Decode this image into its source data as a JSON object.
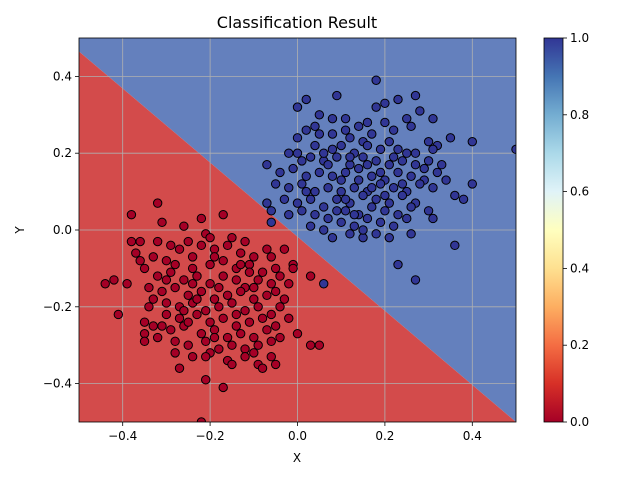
{
  "chart_data": {
    "type": "scatter",
    "title": "Classification Result",
    "xlabel": "X",
    "ylabel": "Y",
    "xlim": [
      -0.5,
      0.5
    ],
    "ylim": [
      -0.5,
      0.5
    ],
    "xticks": [
      -0.4,
      -0.2,
      0.0,
      0.2,
      0.4
    ],
    "xtick_labels": [
      "−0.4",
      "−0.2",
      "0.0",
      "0.2",
      "0.4"
    ],
    "yticks": [
      -0.4,
      -0.2,
      0.0,
      0.2,
      0.4
    ],
    "ytick_labels": [
      "−0.4",
      "−0.2",
      "0.0",
      "0.2",
      "0.4"
    ],
    "grid": true,
    "decision_boundary": {
      "points": [
        [
          -0.5,
          0.465
        ],
        [
          0.5,
          -0.5
        ]
      ]
    },
    "regions": [
      {
        "class": 0,
        "side": "below-boundary",
        "color": "#d34b4b"
      },
      {
        "class": 1,
        "side": "above-boundary",
        "color": "#6480bd"
      }
    ],
    "colorbar": {
      "colormap": "RdYlBu",
      "range": [
        0,
        1
      ],
      "ticks": [
        0.0,
        0.2,
        0.4,
        0.6,
        0.8,
        1.0
      ],
      "tick_labels": [
        "0.0",
        "0.2",
        "0.4",
        "0.6",
        "0.8",
        "1.0"
      ],
      "stops": [
        "#a50026",
        "#d73027",
        "#f46d43",
        "#fdae61",
        "#fee090",
        "#ffffbf",
        "#e0f3f8",
        "#abd9e9",
        "#74add1",
        "#4575b4",
        "#313695"
      ]
    },
    "series": [
      {
        "class": 0,
        "color": "#a50026",
        "points": [
          [
            -0.32,
            0.07
          ],
          [
            -0.38,
            0.04
          ],
          [
            -0.31,
            0.02
          ],
          [
            -0.26,
            0.01
          ],
          [
            -0.21,
            -0.01
          ],
          [
            -0.22,
            0.03
          ],
          [
            -0.17,
            0.04
          ],
          [
            -0.38,
            -0.03
          ],
          [
            -0.36,
            -0.03
          ],
          [
            -0.32,
            -0.03
          ],
          [
            -0.27,
            -0.05
          ],
          [
            -0.25,
            -0.03
          ],
          [
            -0.22,
            -0.04
          ],
          [
            -0.19,
            -0.05
          ],
          [
            -0.16,
            -0.04
          ],
          [
            -0.13,
            -0.06
          ],
          [
            -0.1,
            -0.07
          ],
          [
            -0.06,
            -0.07
          ],
          [
            -0.03,
            -0.05
          ],
          [
            -0.33,
            -0.07
          ],
          [
            -0.3,
            -0.08
          ],
          [
            -0.28,
            -0.09
          ],
          [
            -0.24,
            -0.1
          ],
          [
            -0.2,
            -0.09
          ],
          [
            -0.17,
            -0.08
          ],
          [
            -0.14,
            -0.1
          ],
          [
            -0.11,
            -0.09
          ],
          [
            -0.08,
            -0.11
          ],
          [
            -0.05,
            -0.1
          ],
          [
            -0.01,
            -0.09
          ],
          [
            -0.35,
            -0.1
          ],
          [
            -0.32,
            -0.12
          ],
          [
            -0.29,
            -0.11
          ],
          [
            -0.26,
            -0.13
          ],
          [
            -0.23,
            -0.12
          ],
          [
            -0.2,
            -0.14
          ],
          [
            -0.17,
            -0.12
          ],
          [
            -0.14,
            -0.13
          ],
          [
            -0.12,
            -0.15
          ],
          [
            -0.09,
            -0.13
          ],
          [
            -0.06,
            -0.14
          ],
          [
            -0.04,
            -0.12
          ],
          [
            -0.42,
            -0.13
          ],
          [
            -0.44,
            -0.14
          ],
          [
            -0.39,
            -0.14
          ],
          [
            -0.34,
            -0.15
          ],
          [
            -0.31,
            -0.16
          ],
          [
            -0.28,
            -0.15
          ],
          [
            -0.25,
            -0.17
          ],
          [
            -0.22,
            -0.16
          ],
          [
            -0.19,
            -0.18
          ],
          [
            -0.16,
            -0.17
          ],
          [
            -0.13,
            -0.16
          ],
          [
            -0.1,
            -0.18
          ],
          [
            -0.07,
            -0.17
          ],
          [
            -0.05,
            -0.16
          ],
          [
            -0.33,
            -0.18
          ],
          [
            -0.3,
            -0.19
          ],
          [
            -0.27,
            -0.2
          ],
          [
            -0.24,
            -0.19
          ],
          [
            -0.21,
            -0.21
          ],
          [
            -0.18,
            -0.2
          ],
          [
            -0.15,
            -0.19
          ],
          [
            -0.12,
            -0.21
          ],
          [
            -0.09,
            -0.2
          ],
          [
            -0.06,
            -0.22
          ],
          [
            -0.41,
            -0.22
          ],
          [
            -0.3,
            -0.22
          ],
          [
            -0.27,
            -0.23
          ],
          [
            -0.23,
            -0.22
          ],
          [
            -0.2,
            -0.24
          ],
          [
            -0.17,
            -0.23
          ],
          [
            -0.14,
            -0.25
          ],
          [
            -0.11,
            -0.24
          ],
          [
            -0.08,
            -0.23
          ],
          [
            -0.05,
            -0.25
          ],
          [
            -0.02,
            -0.23
          ],
          [
            -0.35,
            -0.24
          ],
          [
            -0.33,
            -0.25
          ],
          [
            -0.29,
            -0.26
          ],
          [
            -0.26,
            -0.25
          ],
          [
            -0.22,
            -0.27
          ],
          [
            -0.19,
            -0.26
          ],
          [
            -0.16,
            -0.28
          ],
          [
            -0.13,
            -0.27
          ],
          [
            -0.1,
            -0.28
          ],
          [
            -0.07,
            -0.26
          ],
          [
            -0.04,
            -0.28
          ],
          [
            -0.35,
            -0.27
          ],
          [
            -0.32,
            -0.28
          ],
          [
            -0.28,
            -0.29
          ],
          [
            -0.25,
            -0.3
          ],
          [
            -0.21,
            -0.29
          ],
          [
            -0.18,
            -0.31
          ],
          [
            -0.15,
            -0.3
          ],
          [
            -0.12,
            -0.31
          ],
          [
            -0.09,
            -0.3
          ],
          [
            -0.06,
            -0.29
          ],
          [
            -0.35,
            -0.29
          ],
          [
            -0.28,
            -0.32
          ],
          [
            -0.24,
            -0.33
          ],
          [
            -0.2,
            -0.32
          ],
          [
            -0.16,
            -0.34
          ],
          [
            -0.12,
            -0.33
          ],
          [
            -0.09,
            -0.35
          ],
          [
            -0.05,
            -0.35
          ],
          [
            -0.27,
            -0.36
          ],
          [
            -0.21,
            -0.39
          ],
          [
            -0.17,
            -0.41
          ],
          [
            -0.22,
            -0.5
          ],
          [
            0.0,
            -0.27
          ],
          [
            0.03,
            -0.3
          ],
          [
            0.05,
            -0.3
          ],
          [
            0.03,
            -0.12
          ],
          [
            -0.01,
            -0.1
          ],
          [
            -0.08,
            -0.36
          ],
          [
            -0.37,
            -0.06
          ],
          [
            -0.34,
            -0.2
          ],
          [
            -0.36,
            -0.08
          ],
          [
            -0.24,
            -0.07
          ],
          [
            -0.12,
            -0.03
          ],
          [
            -0.15,
            -0.02
          ],
          [
            -0.19,
            -0.07
          ],
          [
            -0.29,
            -0.04
          ],
          [
            -0.03,
            -0.18
          ],
          [
            -0.02,
            -0.14
          ],
          [
            -0.1,
            -0.15
          ],
          [
            -0.2,
            -0.02
          ],
          [
            -0.26,
            -0.21
          ],
          [
            -0.31,
            -0.25
          ],
          [
            -0.14,
            -0.22
          ],
          [
            -0.18,
            -0.15
          ],
          [
            -0.23,
            -0.18
          ],
          [
            -0.15,
            -0.35
          ],
          [
            -0.1,
            -0.32
          ],
          [
            -0.06,
            -0.33
          ],
          [
            -0.25,
            -0.24
          ],
          [
            -0.19,
            -0.28
          ],
          [
            -0.3,
            -0.13
          ],
          [
            -0.07,
            -0.05
          ],
          [
            -0.11,
            -0.11
          ],
          [
            -0.24,
            -0.14
          ],
          [
            -0.04,
            -0.2
          ],
          [
            -0.21,
            -0.33
          ],
          [
            -0.13,
            -0.09
          ]
        ]
      },
      {
        "class": 1,
        "color": "#313695",
        "points": [
          [
            0.18,
            0.39
          ],
          [
            0.09,
            0.35
          ],
          [
            0.02,
            0.34
          ],
          [
            0.23,
            0.34
          ],
          [
            0.27,
            0.35
          ],
          [
            0.05,
            0.3
          ],
          [
            0.0,
            0.32
          ],
          [
            0.2,
            0.33
          ],
          [
            0.18,
            0.32
          ],
          [
            0.11,
            0.29
          ],
          [
            0.14,
            0.27
          ],
          [
            0.2,
            0.28
          ],
          [
            0.25,
            0.29
          ],
          [
            0.31,
            0.29
          ],
          [
            0.02,
            0.26
          ],
          [
            0.05,
            0.25
          ],
          [
            0.08,
            0.25
          ],
          [
            0.11,
            0.26
          ],
          [
            0.15,
            0.23
          ],
          [
            0.17,
            0.25
          ],
          [
            0.22,
            0.26
          ],
          [
            0.26,
            0.27
          ],
          [
            0.3,
            0.23
          ],
          [
            0.32,
            0.22
          ],
          [
            0.35,
            0.24
          ],
          [
            0.4,
            0.23
          ],
          [
            0.0,
            0.24
          ],
          [
            0.04,
            0.22
          ],
          [
            0.08,
            0.21
          ],
          [
            0.1,
            0.22
          ],
          [
            0.13,
            0.2
          ],
          [
            0.16,
            0.22
          ],
          [
            0.19,
            0.21
          ],
          [
            0.23,
            0.21
          ],
          [
            0.27,
            0.2
          ],
          [
            0.31,
            0.21
          ],
          [
            0.5,
            0.21
          ],
          [
            0.0,
            0.2
          ],
          [
            0.03,
            0.19
          ],
          [
            0.06,
            0.18
          ],
          [
            0.09,
            0.19
          ],
          [
            0.12,
            0.17
          ],
          [
            0.15,
            0.19
          ],
          [
            0.18,
            0.18
          ],
          [
            0.21,
            0.17
          ],
          [
            0.24,
            0.18
          ],
          [
            0.27,
            0.17
          ],
          [
            0.3,
            0.18
          ],
          [
            0.33,
            0.17
          ],
          [
            -0.07,
            0.17
          ],
          [
            -0.04,
            0.15
          ],
          [
            -0.01,
            0.16
          ],
          [
            0.02,
            0.14
          ],
          [
            0.05,
            0.15
          ],
          [
            0.08,
            0.14
          ],
          [
            0.11,
            0.15
          ],
          [
            0.14,
            0.13
          ],
          [
            0.17,
            0.14
          ],
          [
            0.2,
            0.13
          ],
          [
            0.23,
            0.15
          ],
          [
            0.26,
            0.14
          ],
          [
            0.29,
            0.13
          ],
          [
            0.32,
            0.15
          ],
          [
            -0.05,
            0.12
          ],
          [
            -0.02,
            0.11
          ],
          [
            0.01,
            0.12
          ],
          [
            0.04,
            0.1
          ],
          [
            0.07,
            0.11
          ],
          [
            0.1,
            0.1
          ],
          [
            0.13,
            0.11
          ],
          [
            0.16,
            0.1
          ],
          [
            0.19,
            0.12
          ],
          [
            0.22,
            0.11
          ],
          [
            0.25,
            0.1
          ],
          [
            0.28,
            0.12
          ],
          [
            0.31,
            0.11
          ],
          [
            0.4,
            0.12
          ],
          [
            -0.03,
            0.08
          ],
          [
            0.0,
            0.07
          ],
          [
            0.03,
            0.08
          ],
          [
            0.06,
            0.06
          ],
          [
            0.09,
            0.08
          ],
          [
            0.12,
            0.07
          ],
          [
            0.15,
            0.09
          ],
          [
            0.18,
            0.08
          ],
          [
            0.21,
            0.07
          ],
          [
            0.24,
            0.09
          ],
          [
            0.27,
            0.07
          ],
          [
            0.36,
            0.09
          ],
          [
            -0.06,
            0.05
          ],
          [
            -0.02,
            0.04
          ],
          [
            0.01,
            0.05
          ],
          [
            0.04,
            0.04
          ],
          [
            0.07,
            0.03
          ],
          [
            0.11,
            0.05
          ],
          [
            0.14,
            0.04
          ],
          [
            0.17,
            0.06
          ],
          [
            0.2,
            0.05
          ],
          [
            0.23,
            0.04
          ],
          [
            0.26,
            0.06
          ],
          [
            0.3,
            0.05
          ],
          [
            -0.07,
            0.07
          ],
          [
            -0.06,
            0.02
          ],
          [
            0.03,
            0.01
          ],
          [
            0.06,
            0.0
          ],
          [
            0.1,
            0.02
          ],
          [
            0.13,
            0.01
          ],
          [
            0.16,
            0.03
          ],
          [
            0.19,
            0.02
          ],
          [
            0.22,
            0.01
          ],
          [
            0.25,
            0.03
          ],
          [
            0.31,
            0.03
          ],
          [
            0.08,
            -0.02
          ],
          [
            0.12,
            -0.01
          ],
          [
            0.15,
            -0.02
          ],
          [
            0.18,
            -0.01
          ],
          [
            0.21,
            -0.02
          ],
          [
            0.26,
            -0.01
          ],
          [
            0.36,
            -0.04
          ],
          [
            0.23,
            -0.09
          ],
          [
            0.27,
            -0.13
          ],
          [
            0.06,
            -0.14
          ],
          [
            0.38,
            0.08
          ],
          [
            0.34,
            0.13
          ],
          [
            0.28,
            0.31
          ],
          [
            0.12,
            0.24
          ],
          [
            0.16,
            0.28
          ],
          [
            0.08,
            0.29
          ],
          [
            0.21,
            0.23
          ],
          [
            0.25,
            0.2
          ],
          [
            0.1,
            0.13
          ],
          [
            0.14,
            0.16
          ],
          [
            0.19,
            0.15
          ],
          [
            0.22,
            0.19
          ],
          [
            0.06,
            0.2
          ],
          [
            0.01,
            0.18
          ],
          [
            0.11,
            0.08
          ],
          [
            0.17,
            0.11
          ],
          [
            0.09,
            0.05
          ],
          [
            0.15,
            0.0
          ],
          [
            0.02,
            0.1
          ],
          [
            0.12,
            0.19
          ],
          [
            0.2,
            0.09
          ],
          [
            0.24,
            0.12
          ],
          [
            0.04,
            0.27
          ],
          [
            0.29,
            0.16
          ],
          [
            -0.02,
            0.2
          ],
          [
            0.07,
            0.17
          ],
          [
            0.16,
            0.17
          ],
          [
            0.13,
            0.04
          ]
        ]
      }
    ]
  }
}
